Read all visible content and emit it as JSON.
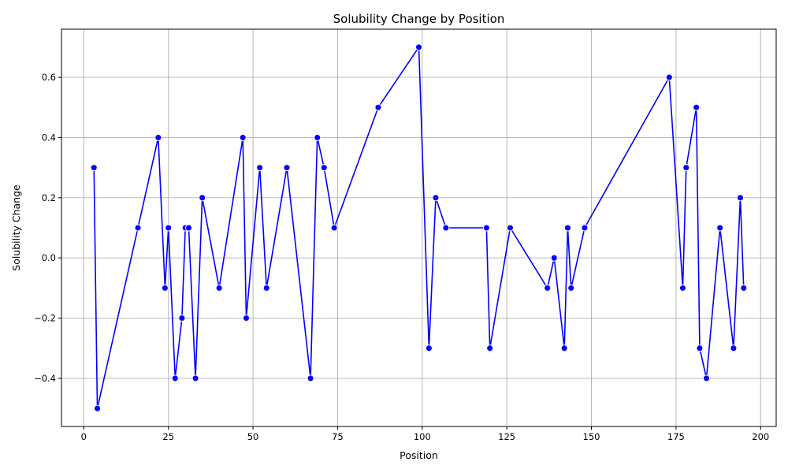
{
  "chart_data": {
    "type": "line",
    "title": "Solubility Change by Position",
    "xlabel": "Position",
    "ylabel": "Solubility Change",
    "xlim": [
      -6.6,
      204.6
    ],
    "ylim": [
      -0.56,
      0.76
    ],
    "xticks": [
      0,
      25,
      50,
      75,
      100,
      125,
      150,
      175,
      200
    ],
    "yticks": [
      -0.4,
      -0.2,
      0.0,
      0.2,
      0.4,
      0.6
    ],
    "xtick_labels": [
      "0",
      "25",
      "50",
      "75",
      "100",
      "125",
      "150",
      "175",
      "200"
    ],
    "ytick_labels": [
      "−0.4",
      "−0.2",
      "0.0",
      "0.2",
      "0.4",
      "0.6"
    ],
    "grid": true,
    "color": "#0000ff",
    "x": [
      3,
      4,
      16,
      22,
      24,
      25,
      27,
      29,
      30,
      31,
      33,
      35,
      40,
      47,
      48,
      52,
      54,
      60,
      67,
      69,
      71,
      74,
      87,
      99,
      102,
      104,
      107,
      119,
      120,
      126,
      137,
      139,
      142,
      143,
      144,
      148,
      173,
      177,
      178,
      181,
      182,
      184,
      188,
      192,
      194,
      195
    ],
    "y": [
      0.3,
      -0.5,
      0.1,
      0.4,
      -0.1,
      0.1,
      -0.4,
      -0.2,
      0.1,
      0.1,
      -0.4,
      0.2,
      -0.1,
      0.4,
      -0.2,
      0.3,
      -0.1,
      0.3,
      -0.4,
      0.4,
      0.3,
      0.1,
      0.5,
      0.7,
      -0.3,
      0.2,
      0.1,
      0.1,
      -0.3,
      0.1,
      -0.1,
      0.0,
      -0.3,
      0.1,
      -0.1,
      0.1,
      0.6,
      -0.1,
      0.3,
      0.5,
      -0.3,
      -0.4,
      0.1,
      -0.3,
      0.2,
      -0.1
    ]
  }
}
